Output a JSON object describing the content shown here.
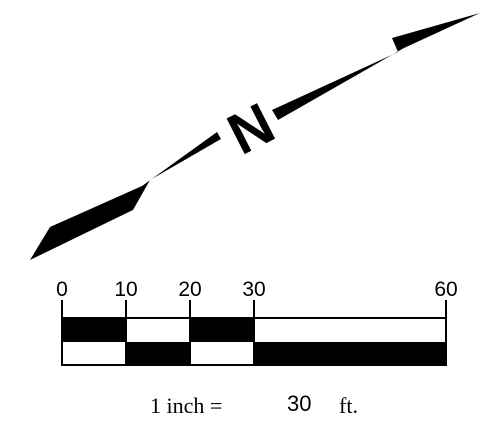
{
  "north_arrow": {
    "letter": "N",
    "icon": "north-arrow-icon",
    "color": "#000000"
  },
  "scale_bar": {
    "tick_labels": [
      "0",
      "10",
      "20",
      "30",
      "60"
    ],
    "tick_values": [
      0,
      10,
      20,
      30,
      60
    ],
    "max_value": 60,
    "ink_color": "#000000",
    "paper_color": "#ffffff"
  },
  "ratio": {
    "prefix": "1 inch =",
    "value": "30",
    "unit": "ft."
  }
}
